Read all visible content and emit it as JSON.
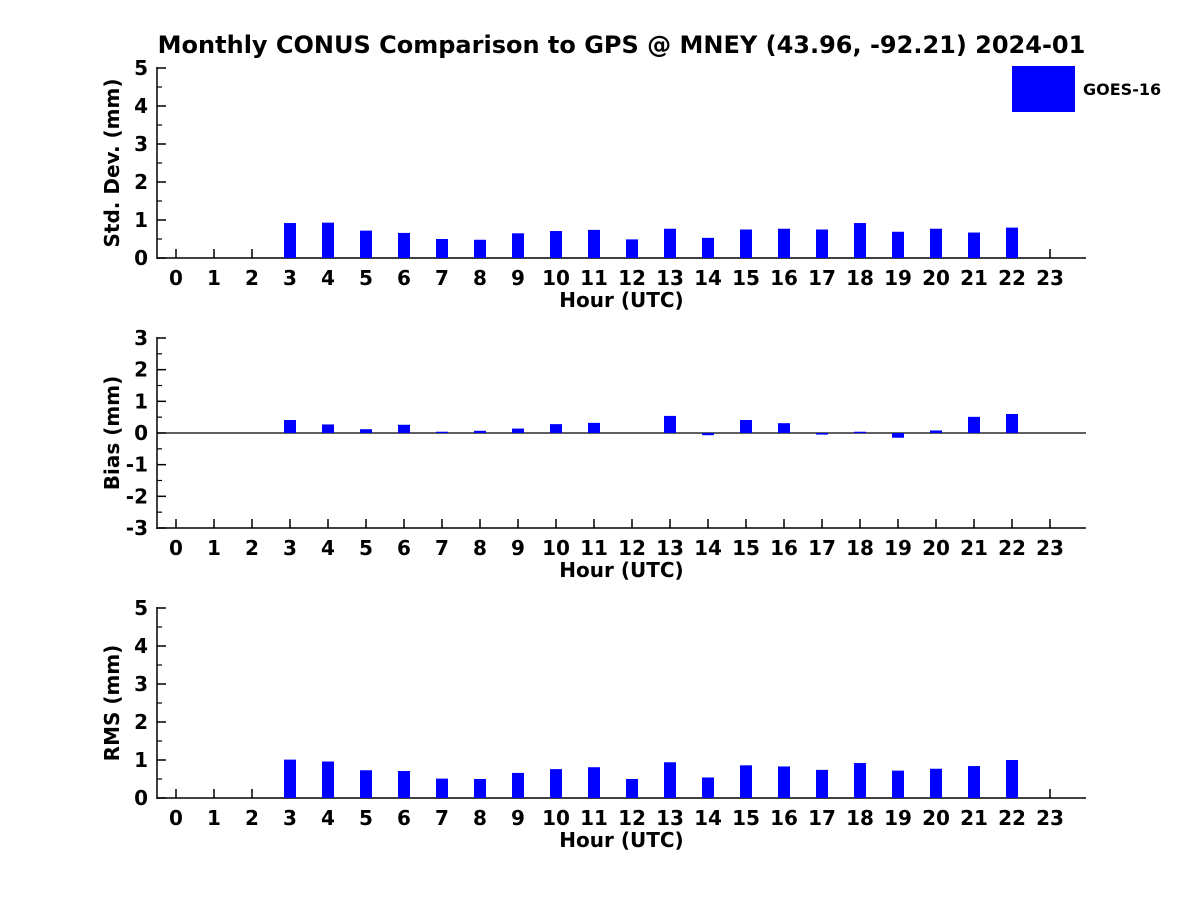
{
  "title": "Monthly CONUS Comparison to GPS @ MNEY (43.96, -92.21) 2024-01",
  "legend": {
    "label": "GOES-16",
    "color": "#0000ff"
  },
  "chart_data": [
    {
      "id": "stddev",
      "type": "bar",
      "ylabel": "Std. Dev. (mm)",
      "xlabel": "Hour (UTC)",
      "ylim": [
        0,
        5
      ],
      "yticks": [
        0,
        1,
        2,
        3,
        4,
        5
      ],
      "yminor_step": 0.5,
      "zero_line": false,
      "grid": false,
      "categories": [
        "0",
        "1",
        "2",
        "3",
        "4",
        "5",
        "6",
        "7",
        "8",
        "9",
        "10",
        "11",
        "12",
        "13",
        "14",
        "15",
        "16",
        "17",
        "18",
        "19",
        "20",
        "21",
        "22",
        "23"
      ],
      "series": [
        {
          "name": "GOES-16",
          "color": "#0000ff",
          "values": [
            0,
            0,
            0,
            0.92,
            0.93,
            0.72,
            0.66,
            0.5,
            0.48,
            0.65,
            0.71,
            0.74,
            0.49,
            0.77,
            0.53,
            0.75,
            0.77,
            0.75,
            0.92,
            0.69,
            0.77,
            0.67,
            0.8,
            0
          ]
        }
      ]
    },
    {
      "id": "bias",
      "type": "bar",
      "ylabel": "Bias (mm)",
      "xlabel": "Hour (UTC)",
      "ylim": [
        -3,
        3
      ],
      "yticks": [
        -3,
        -2,
        -1,
        0,
        1,
        2,
        3
      ],
      "yminor_step": 0.5,
      "zero_line": true,
      "grid": false,
      "categories": [
        "0",
        "1",
        "2",
        "3",
        "4",
        "5",
        "6",
        "7",
        "8",
        "9",
        "10",
        "11",
        "12",
        "13",
        "14",
        "15",
        "16",
        "17",
        "18",
        "19",
        "20",
        "21",
        "22",
        "23"
      ],
      "series": [
        {
          "name": "GOES-16",
          "color": "#0000ff",
          "values": [
            0,
            0,
            0,
            0.41,
            0.27,
            0.12,
            0.26,
            0.04,
            0.07,
            0.14,
            0.28,
            0.32,
            0,
            0.54,
            -0.07,
            0.41,
            0.31,
            -0.05,
            0.04,
            -0.15,
            0.08,
            0.51,
            0.6,
            0
          ]
        }
      ]
    },
    {
      "id": "rms",
      "type": "bar",
      "ylabel": "RMS (mm)",
      "xlabel": "Hour (UTC)",
      "ylim": [
        0,
        5
      ],
      "yticks": [
        0,
        1,
        2,
        3,
        4,
        5
      ],
      "yminor_step": 0.5,
      "zero_line": false,
      "grid": false,
      "categories": [
        "0",
        "1",
        "2",
        "3",
        "4",
        "5",
        "6",
        "7",
        "8",
        "9",
        "10",
        "11",
        "12",
        "13",
        "14",
        "15",
        "16",
        "17",
        "18",
        "19",
        "20",
        "21",
        "22",
        "23"
      ],
      "series": [
        {
          "name": "GOES-16",
          "color": "#0000ff",
          "values": [
            0,
            0,
            0,
            1.01,
            0.96,
            0.73,
            0.71,
            0.51,
            0.5,
            0.66,
            0.76,
            0.81,
            0.5,
            0.94,
            0.54,
            0.86,
            0.83,
            0.74,
            0.92,
            0.72,
            0.77,
            0.84,
            1.0,
            0
          ]
        }
      ]
    }
  ]
}
